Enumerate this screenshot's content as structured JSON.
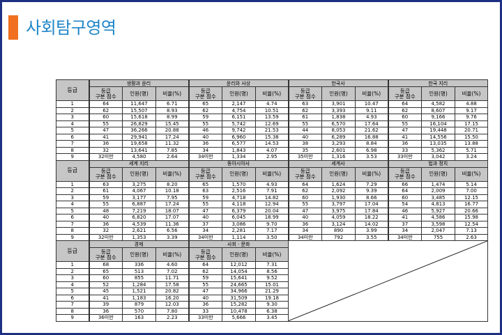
{
  "title": "사회탐구영역",
  "colors": {
    "accent_bar": "#f07020",
    "title": "#1f86c8",
    "border": "#1c2f80",
    "header_bg": "#c6c6c6"
  },
  "table": {
    "grade_header": "등급",
    "sub_headers": [
      "등급\n구분 점수",
      "인원(명)",
      "비율(%)"
    ],
    "grades": [
      "1",
      "2",
      "3",
      "4",
      "5",
      "6",
      "7",
      "8",
      "9"
    ],
    "blocks": [
      [
        {
          "subject": "생활과 윤리",
          "rows": [
            [
              "64",
              "11,647",
              "6.71"
            ],
            [
              "62",
              "15,507",
              "8.93"
            ],
            [
              "60",
              "15,618",
              "8.99"
            ],
            [
              "55",
              "26,829",
              "15.45"
            ],
            [
              "47",
              "36,266",
              "20.88"
            ],
            [
              "41",
              "29,941",
              "17.24"
            ],
            [
              "36",
              "19,658",
              "11.32"
            ],
            [
              "32",
              "13,641",
              "7.85"
            ],
            [
              "32미만",
              "4,580",
              "2.64"
            ]
          ]
        },
        {
          "subject": "윤리와 사상",
          "rows": [
            [
              "65",
              "2,147",
              "4.74"
            ],
            [
              "62",
              "4,754",
              "10.51"
            ],
            [
              "59",
              "6,151",
              "13.59"
            ],
            [
              "55",
              "5,742",
              "12.69"
            ],
            [
              "46",
              "9,742",
              "21.53"
            ],
            [
              "40",
              "6,960",
              "15.38"
            ],
            [
              "36",
              "6,577",
              "14.53"
            ],
            [
              "34",
              "1,843",
              "4.07"
            ],
            [
              "34미만",
              "1,334",
              "2.95"
            ]
          ]
        },
        {
          "subject": "한국사",
          "rows": [
            [
              "63",
              "3,901",
              "10.47"
            ],
            [
              "62",
              "3,393",
              "9.11"
            ],
            [
              "61",
              "1,838",
              "4.93"
            ],
            [
              "55",
              "6,570",
              "17.64"
            ],
            [
              "44",
              "8,053",
              "21.62"
            ],
            [
              "40",
              "6,289",
              "16.88"
            ],
            [
              "38",
              "3,293",
              "8.84"
            ],
            [
              "35",
              "2,601",
              "6.98"
            ],
            [
              "35미만",
              "1,316",
              "3.53"
            ]
          ]
        },
        {
          "subject": "한국 지리",
          "rows": [
            [
              "64",
              "4,582",
              "4.88"
            ],
            [
              "62",
              "8,607",
              "9.17"
            ],
            [
              "60",
              "9,166",
              "9.76"
            ],
            [
              "55",
              "16,104",
              "17.15"
            ],
            [
              "47",
              "19,448",
              "20.71"
            ],
            [
              "41",
              "14,556",
              "15.50"
            ],
            [
              "36",
              "13,035",
              "13.88"
            ],
            [
              "33",
              "5,362",
              "5.71"
            ],
            [
              "33미만",
              "3,042",
              "3.24"
            ]
          ]
        }
      ],
      [
        {
          "subject": "세계 지리",
          "rows": [
            [
              "63",
              "3,275",
              "8.20"
            ],
            [
              "61",
              "4,067",
              "10.18"
            ],
            [
              "59",
              "3,177",
              "7.95"
            ],
            [
              "55",
              "6,887",
              "17.24"
            ],
            [
              "48",
              "7,219",
              "18.07"
            ],
            [
              "40",
              "6,820",
              "17.07"
            ],
            [
              "36",
              "4,539",
              "11.36"
            ],
            [
              "32",
              "2,621",
              "6.56"
            ],
            [
              "32미만",
              "1,353",
              "3.39"
            ]
          ]
        },
        {
          "subject": "동아시아사",
          "rows": [
            [
              "65",
              "1,570",
              "4.93"
            ],
            [
              "63",
              "2,516",
              "7.91"
            ],
            [
              "59",
              "4,718",
              "14.82"
            ],
            [
              "55",
              "4,118",
              "12.94"
            ],
            [
              "47",
              "6,379",
              "20.04"
            ],
            [
              "40",
              "6,045",
              "18.99"
            ],
            [
              "37",
              "3,086",
              "9.70"
            ],
            [
              "34",
              "2,281",
              "7.17"
            ],
            [
              "34미만",
              "1,114",
              "3.50"
            ]
          ]
        },
        {
          "subject": "세계사",
          "rows": [
            [
              "64",
              "1,624",
              "7.29"
            ],
            [
              "62",
              "2,092",
              "9.39"
            ],
            [
              "60",
              "1,930",
              "8.66"
            ],
            [
              "55",
              "3,797",
              "17.04"
            ],
            [
              "47",
              "3,975",
              "17.84"
            ],
            [
              "40",
              "4,059",
              "18.22"
            ],
            [
              "36",
              "3,124",
              "14.02"
            ],
            [
              "34",
              "890",
              "3.99"
            ],
            [
              "34미만",
              "792",
              "3.55"
            ]
          ]
        },
        {
          "subject": "법과 정치",
          "rows": [
            [
              "66",
              "1,474",
              "5.14"
            ],
            [
              "64",
              "2,009",
              "7.00"
            ],
            [
              "60",
              "3,485",
              "12.15"
            ],
            [
              "54",
              "4,813",
              "16.77"
            ],
            [
              "46",
              "5,927",
              "20.66"
            ],
            [
              "41",
              "4,586",
              "15.98"
            ],
            [
              "37",
              "3,598",
              "12.54"
            ],
            [
              "34",
              "2,047",
              "7.13"
            ],
            [
              "34미만",
              "755",
              "2.63"
            ]
          ]
        }
      ],
      [
        {
          "subject": "경제",
          "rows": [
            [
              "68",
              "336",
              "4.60"
            ],
            [
              "65",
              "513",
              "7.02"
            ],
            [
              "60",
              "855",
              "11.71"
            ],
            [
              "52",
              "1,284",
              "17.58"
            ],
            [
              "45",
              "1,521",
              "20.82"
            ],
            [
              "41",
              "1,183",
              "16.20"
            ],
            [
              "39",
              "879",
              "12.03"
            ],
            [
              "36",
              "570",
              "7.80"
            ],
            [
              "36미만",
              "163",
              "2.23"
            ]
          ]
        },
        {
          "subject": "사회 · 문화",
          "rows": [
            [
              "64",
              "12,012",
              "7.31"
            ],
            [
              "62",
              "14,054",
              "8.56"
            ],
            [
              "59",
              "15,641",
              "9.52"
            ],
            [
              "55",
              "24,665",
              "15.01"
            ],
            [
              "47",
              "34,966",
              "21.29"
            ],
            [
              "40",
              "31,509",
              "19.18"
            ],
            [
              "36",
              "15,282",
              "9.30"
            ],
            [
              "33",
              "10,478",
              "6.38"
            ],
            [
              "33미만",
              "5,666",
              "3.45"
            ]
          ]
        }
      ]
    ]
  }
}
